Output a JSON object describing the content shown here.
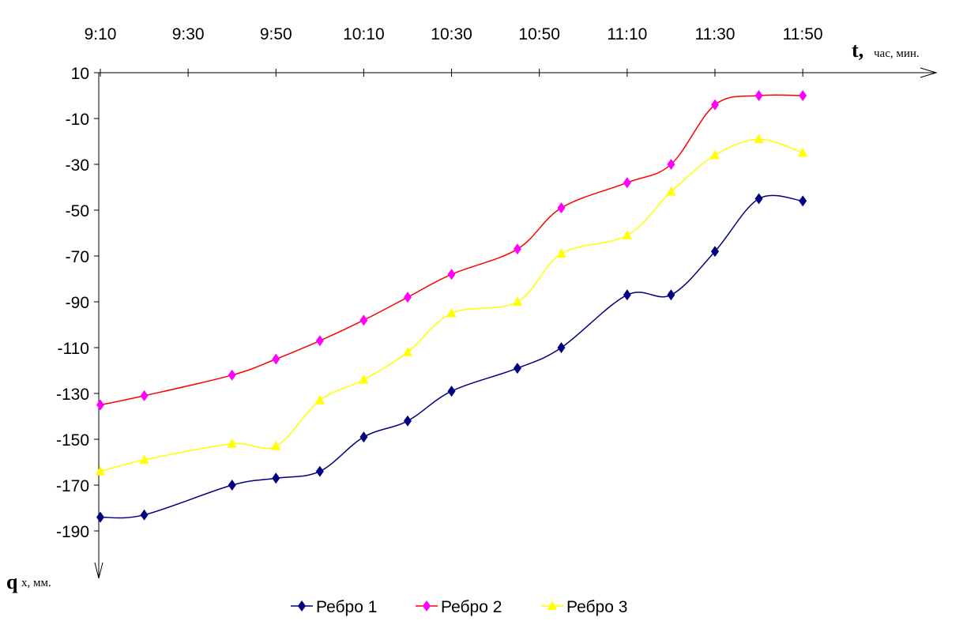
{
  "chart_data": {
    "type": "line",
    "x_axis": {
      "label_main": "t,",
      "label_unit": "час, мин.",
      "position": "top",
      "tick_labels": [
        "9:10",
        "9:30",
        "9:50",
        "10:10",
        "10:30",
        "10:50",
        "11:10",
        "11:30",
        "11:50"
      ],
      "tick_minutes": [
        550,
        570,
        590,
        610,
        630,
        650,
        670,
        690,
        710
      ],
      "range": [
        "9:10",
        "11:50"
      ]
    },
    "y_axis": {
      "label_main": "q",
      "label_unit": "x, мм.",
      "direction": "downward",
      "tick_labels": [
        "10",
        "-10",
        "-30",
        "-50",
        "-70",
        "-90",
        "-110",
        "-130",
        "-150",
        "-170",
        "-190"
      ],
      "tick_values": [
        10,
        -10,
        -30,
        -50,
        -70,
        -90,
        -110,
        -130,
        -150,
        -170,
        -190
      ],
      "ylim": [
        -200,
        10
      ]
    },
    "x": [
      "9:10",
      "9:20",
      "9:40",
      "9:50",
      "10:00",
      "10:10",
      "10:20",
      "10:30",
      "10:45",
      "10:55",
      "11:10",
      "11:20",
      "11:30",
      "11:40",
      "11:50"
    ],
    "x_minutes": [
      550,
      560,
      580,
      590,
      600,
      610,
      620,
      630,
      645,
      655,
      670,
      680,
      690,
      700,
      710
    ],
    "series": [
      {
        "name": "Ребро 1",
        "color": "#000080",
        "marker": "diamond",
        "values": [
          -184,
          -183,
          -170,
          -167,
          -164,
          -149,
          -142,
          -129,
          -119,
          -110,
          -87,
          -87,
          -68,
          -45,
          -46
        ]
      },
      {
        "name": "Ребро 2",
        "color": "#ff0000",
        "marker_color": "#ff00ff",
        "marker": "diamond",
        "values": [
          -135,
          -131,
          -122,
          -115,
          -107,
          -98,
          -88,
          -78,
          -67,
          -49,
          -38,
          -30,
          -4,
          0,
          0
        ]
      },
      {
        "name": "Ребро 3",
        "color": "#ffff00",
        "marker": "triangle",
        "values": [
          -164,
          -159,
          -152,
          -153,
          -133,
          -124,
          -112,
          -95,
          -90,
          -69,
          -61,
          -42,
          -26,
          -19,
          -25
        ]
      }
    ],
    "grid": false,
    "legend_position": "bottom-center"
  }
}
